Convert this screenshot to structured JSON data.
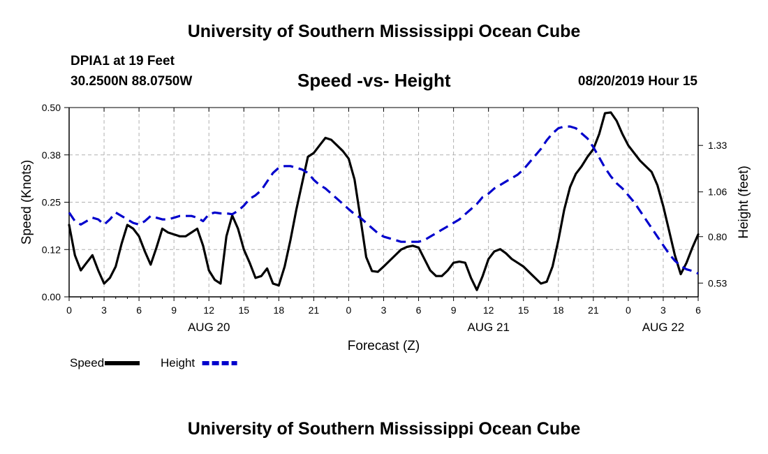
{
  "page": {
    "title_top": "University of Southern Mississippi Ocean Cube",
    "title_bottom": "University of Southern Mississippi Ocean Cube",
    "station": "DPIA1 at 19 Feet",
    "coords": "30.2500N 88.0750W",
    "subtitle": "Speed -vs- Height",
    "datetime": "08/20/2019 Hour 15"
  },
  "chart_data": {
    "type": "line",
    "title": "Speed -vs- Height",
    "xlabel": "Forecast (Z)",
    "ylabel_left": "Speed (Knots)",
    "ylabel_right": "Height (feet)",
    "x_range_hours": [
      0,
      54
    ],
    "x_ticks": [
      {
        "h": 0,
        "label": "0"
      },
      {
        "h": 3,
        "label": "3"
      },
      {
        "h": 6,
        "label": "6"
      },
      {
        "h": 9,
        "label": "9"
      },
      {
        "h": 12,
        "label": "12"
      },
      {
        "h": 15,
        "label": "15"
      },
      {
        "h": 18,
        "label": "18"
      },
      {
        "h": 21,
        "label": "21"
      },
      {
        "h": 24,
        "label": "0"
      },
      {
        "h": 27,
        "label": "3"
      },
      {
        "h": 30,
        "label": "6"
      },
      {
        "h": 33,
        "label": "9"
      },
      {
        "h": 36,
        "label": "12"
      },
      {
        "h": 39,
        "label": "15"
      },
      {
        "h": 42,
        "label": "18"
      },
      {
        "h": 45,
        "label": "21"
      },
      {
        "h": 48,
        "label": "0"
      },
      {
        "h": 51,
        "label": "3"
      },
      {
        "h": 54,
        "label": "6"
      }
    ],
    "day_labels": [
      {
        "h": 12,
        "label": "AUG 20"
      },
      {
        "h": 36,
        "label": "AUG 21"
      },
      {
        "h": 51,
        "label": "AUG 22"
      }
    ],
    "ylim_left": [
      0,
      0.5
    ],
    "y_ticks_left": [
      {
        "v": 0,
        "label": "0.00"
      },
      {
        "v": 0.125,
        "label": "0.12"
      },
      {
        "v": 0.25,
        "label": "0.25"
      },
      {
        "v": 0.375,
        "label": "0.38"
      },
      {
        "v": 0.5,
        "label": "0.50"
      }
    ],
    "ylim_right": [
      0.45,
      1.55
    ],
    "y_ticks_right": [
      {
        "v": 0.53,
        "label": "0.53"
      },
      {
        "v": 0.8,
        "label": "0.80"
      },
      {
        "v": 1.06,
        "label": "1.06"
      },
      {
        "v": 1.33,
        "label": "1.33"
      }
    ],
    "series": [
      {
        "name": "Speed",
        "axis": "left",
        "color": "#000000",
        "style": "solid",
        "points": [
          [
            0,
            0.19
          ],
          [
            0.5,
            0.11
          ],
          [
            1,
            0.07
          ],
          [
            1.5,
            0.09
          ],
          [
            2,
            0.11
          ],
          [
            2.5,
            0.07
          ],
          [
            3,
            0.035
          ],
          [
            3.5,
            0.05
          ],
          [
            4,
            0.08
          ],
          [
            4.5,
            0.14
          ],
          [
            5,
            0.19
          ],
          [
            5.5,
            0.18
          ],
          [
            6,
            0.16
          ],
          [
            6.5,
            0.12
          ],
          [
            7,
            0.085
          ],
          [
            7.5,
            0.13
          ],
          [
            8,
            0.18
          ],
          [
            8.5,
            0.17
          ],
          [
            9,
            0.165
          ],
          [
            9.5,
            0.16
          ],
          [
            10,
            0.16
          ],
          [
            10.5,
            0.17
          ],
          [
            11,
            0.18
          ],
          [
            11.5,
            0.135
          ],
          [
            12,
            0.07
          ],
          [
            12.5,
            0.045
          ],
          [
            13,
            0.035
          ],
          [
            13.5,
            0.16
          ],
          [
            14,
            0.215
          ],
          [
            14.5,
            0.18
          ],
          [
            15,
            0.125
          ],
          [
            15.5,
            0.09
          ],
          [
            16,
            0.05
          ],
          [
            16.5,
            0.055
          ],
          [
            17,
            0.075
          ],
          [
            17.5,
            0.035
          ],
          [
            18,
            0.03
          ],
          [
            18.5,
            0.08
          ],
          [
            19,
            0.15
          ],
          [
            19.5,
            0.23
          ],
          [
            20,
            0.3
          ],
          [
            20.5,
            0.37
          ],
          [
            21,
            0.38
          ],
          [
            21.5,
            0.4
          ],
          [
            22,
            0.42
          ],
          [
            22.5,
            0.415
          ],
          [
            23,
            0.4
          ],
          [
            23.5,
            0.385
          ],
          [
            24,
            0.365
          ],
          [
            24.5,
            0.31
          ],
          [
            25,
            0.21
          ],
          [
            25.5,
            0.105
          ],
          [
            26,
            0.068
          ],
          [
            26.5,
            0.066
          ],
          [
            27,
            0.08
          ],
          [
            27.5,
            0.095
          ],
          [
            28,
            0.11
          ],
          [
            28.5,
            0.125
          ],
          [
            29,
            0.132
          ],
          [
            29.5,
            0.135
          ],
          [
            30,
            0.13
          ],
          [
            30.5,
            0.1
          ],
          [
            31,
            0.07
          ],
          [
            31.5,
            0.055
          ],
          [
            32,
            0.055
          ],
          [
            32.5,
            0.07
          ],
          [
            33,
            0.09
          ],
          [
            33.5,
            0.093
          ],
          [
            34,
            0.09
          ],
          [
            34.5,
            0.05
          ],
          [
            35,
            0.018
          ],
          [
            35.5,
            0.055
          ],
          [
            36,
            0.1
          ],
          [
            36.5,
            0.12
          ],
          [
            37,
            0.126
          ],
          [
            37.5,
            0.115
          ],
          [
            38,
            0.1
          ],
          [
            38.5,
            0.09
          ],
          [
            39,
            0.08
          ],
          [
            39.5,
            0.065
          ],
          [
            40,
            0.05
          ],
          [
            40.5,
            0.035
          ],
          [
            41,
            0.04
          ],
          [
            41.5,
            0.08
          ],
          [
            42,
            0.15
          ],
          [
            42.5,
            0.23
          ],
          [
            43,
            0.29
          ],
          [
            43.5,
            0.325
          ],
          [
            44,
            0.345
          ],
          [
            44.5,
            0.37
          ],
          [
            45,
            0.39
          ],
          [
            45.5,
            0.43
          ],
          [
            46,
            0.485
          ],
          [
            46.5,
            0.487
          ],
          [
            47,
            0.465
          ],
          [
            47.5,
            0.43
          ],
          [
            48,
            0.4
          ],
          [
            48.5,
            0.38
          ],
          [
            49,
            0.36
          ],
          [
            49.5,
            0.345
          ],
          [
            50,
            0.33
          ],
          [
            50.5,
            0.295
          ],
          [
            51,
            0.24
          ],
          [
            51.5,
            0.175
          ],
          [
            52,
            0.11
          ],
          [
            52.5,
            0.06
          ],
          [
            53,
            0.09
          ],
          [
            53.5,
            0.13
          ],
          [
            54,
            0.165
          ]
        ]
      },
      {
        "name": "Height",
        "axis": "right",
        "color": "#0000cc",
        "style": "dashed",
        "points": [
          [
            0,
            0.94
          ],
          [
            0.5,
            0.89
          ],
          [
            1,
            0.87
          ],
          [
            1.5,
            0.89
          ],
          [
            2,
            0.91
          ],
          [
            2.5,
            0.9
          ],
          [
            3,
            0.87
          ],
          [
            3.5,
            0.9
          ],
          [
            4,
            0.94
          ],
          [
            4.5,
            0.92
          ],
          [
            5,
            0.9
          ],
          [
            5.5,
            0.88
          ],
          [
            6,
            0.87
          ],
          [
            6.5,
            0.89
          ],
          [
            7,
            0.92
          ],
          [
            7.5,
            0.91
          ],
          [
            8,
            0.9
          ],
          [
            8.5,
            0.9
          ],
          [
            9,
            0.91
          ],
          [
            9.5,
            0.92
          ],
          [
            10,
            0.92
          ],
          [
            10.5,
            0.92
          ],
          [
            11,
            0.91
          ],
          [
            11.5,
            0.89
          ],
          [
            12,
            0.93
          ],
          [
            12.5,
            0.94
          ],
          [
            13,
            0.935
          ],
          [
            13.5,
            0.935
          ],
          [
            14,
            0.93
          ],
          [
            14.5,
            0.95
          ],
          [
            15,
            0.98
          ],
          [
            15.5,
            1.02
          ],
          [
            16,
            1.04
          ],
          [
            16.5,
            1.07
          ],
          [
            17,
            1.12
          ],
          [
            17.5,
            1.17
          ],
          [
            18,
            1.2
          ],
          [
            18.5,
            1.21
          ],
          [
            19,
            1.21
          ],
          [
            19.5,
            1.2
          ],
          [
            20,
            1.19
          ],
          [
            20.5,
            1.17
          ],
          [
            21,
            1.13
          ],
          [
            21.5,
            1.1
          ],
          [
            22,
            1.08
          ],
          [
            22.5,
            1.05
          ],
          [
            23,
            1.02
          ],
          [
            23.5,
            0.99
          ],
          [
            24,
            0.96
          ],
          [
            24.5,
            0.93
          ],
          [
            25,
            0.91
          ],
          [
            25.5,
            0.88
          ],
          [
            26,
            0.85
          ],
          [
            26.5,
            0.82
          ],
          [
            27,
            0.8
          ],
          [
            27.5,
            0.79
          ],
          [
            28,
            0.78
          ],
          [
            28.5,
            0.77
          ],
          [
            29,
            0.77
          ],
          [
            29.5,
            0.77
          ],
          [
            30,
            0.77
          ],
          [
            30.5,
            0.78
          ],
          [
            31,
            0.8
          ],
          [
            31.5,
            0.82
          ],
          [
            32,
            0.84
          ],
          [
            32.5,
            0.86
          ],
          [
            33,
            0.88
          ],
          [
            33.5,
            0.9
          ],
          [
            34,
            0.93
          ],
          [
            34.5,
            0.96
          ],
          [
            35,
            0.99
          ],
          [
            35.5,
            1.03
          ],
          [
            36,
            1.05
          ],
          [
            36.5,
            1.08
          ],
          [
            37,
            1.1
          ],
          [
            37.5,
            1.12
          ],
          [
            38,
            1.14
          ],
          [
            38.5,
            1.16
          ],
          [
            39,
            1.19
          ],
          [
            39.5,
            1.23
          ],
          [
            40,
            1.27
          ],
          [
            40.5,
            1.31
          ],
          [
            41,
            1.36
          ],
          [
            41.5,
            1.4
          ],
          [
            42,
            1.43
          ],
          [
            42.5,
            1.44
          ],
          [
            43,
            1.44
          ],
          [
            43.5,
            1.43
          ],
          [
            44,
            1.4
          ],
          [
            44.5,
            1.37
          ],
          [
            45,
            1.32
          ],
          [
            45.5,
            1.26
          ],
          [
            46,
            1.2
          ],
          [
            46.5,
            1.15
          ],
          [
            47,
            1.11
          ],
          [
            47.5,
            1.08
          ],
          [
            48,
            1.04
          ],
          [
            48.5,
            1.0
          ],
          [
            49,
            0.95
          ],
          [
            49.5,
            0.9
          ],
          [
            50,
            0.85
          ],
          [
            50.5,
            0.8
          ],
          [
            51,
            0.75
          ],
          [
            51.5,
            0.7
          ],
          [
            52,
            0.66
          ],
          [
            52.5,
            0.63
          ],
          [
            53,
            0.61
          ],
          [
            53.5,
            0.6
          ],
          [
            54,
            0.585
          ]
        ]
      }
    ],
    "legend": [
      {
        "label": "Speed",
        "color": "#000000",
        "style": "solid"
      },
      {
        "label": "Height",
        "color": "#0000cc",
        "style": "dashed"
      }
    ],
    "grid": true
  }
}
